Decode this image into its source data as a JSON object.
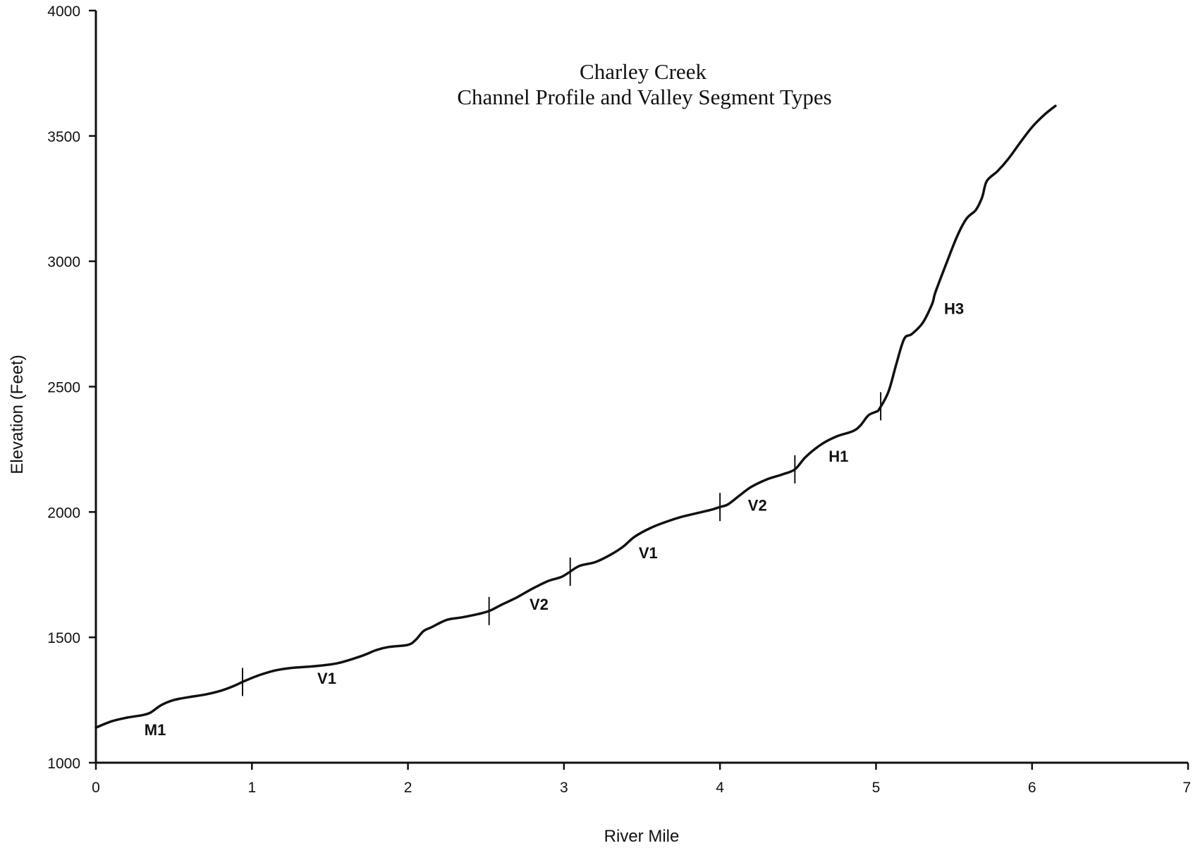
{
  "chart_data": {
    "type": "line",
    "title": "Charley Creek",
    "subtitle": "Channel Profile and Valley Segment Types",
    "xlabel": "River Mile",
    "ylabel": "Elevation (Feet)",
    "xlim": [
      0,
      7
    ],
    "ylim": [
      1000,
      4000
    ],
    "x_ticks": [
      "0",
      "1",
      "2",
      "3",
      "4",
      "5",
      "6",
      "7"
    ],
    "y_ticks": [
      "1000",
      "1500",
      "2000",
      "2500",
      "3000",
      "3500",
      "4000"
    ],
    "grid": false,
    "series": [
      {
        "x": [
          0,
          0.1,
          0.2,
          0.3,
          0.35,
          0.42,
          0.5,
          0.6,
          0.7,
          0.8,
          0.88,
          0.95,
          1.05,
          1.15,
          1.25,
          1.4,
          1.55,
          1.7,
          1.8,
          1.88,
          2.0,
          2.05,
          2.1,
          2.15,
          2.25,
          2.35,
          2.45,
          2.52,
          2.6,
          2.7,
          2.8,
          2.9,
          2.98,
          3.03,
          3.1,
          3.2,
          3.3,
          3.38,
          3.45,
          3.55,
          3.65,
          3.75,
          3.85,
          3.95,
          4.0,
          4.05,
          4.12,
          4.2,
          4.3,
          4.4,
          4.48,
          4.55,
          4.65,
          4.75,
          4.85,
          4.9,
          4.95,
          5.0,
          5.02,
          5.08,
          5.13,
          5.18,
          5.23,
          5.3,
          5.36,
          5.38,
          5.45,
          5.52,
          5.58,
          5.64,
          5.68,
          5.71,
          5.78,
          5.85,
          5.92,
          6.0,
          6.08,
          6.15
        ],
        "y": [
          1140,
          1165,
          1180,
          1190,
          1200,
          1230,
          1250,
          1262,
          1272,
          1287,
          1305,
          1325,
          1350,
          1368,
          1378,
          1385,
          1397,
          1425,
          1450,
          1462,
          1470,
          1490,
          1525,
          1540,
          1570,
          1580,
          1593,
          1605,
          1630,
          1660,
          1695,
          1725,
          1740,
          1758,
          1785,
          1800,
          1830,
          1862,
          1900,
          1935,
          1960,
          1980,
          1995,
          2010,
          2020,
          2030,
          2063,
          2100,
          2130,
          2150,
          2170,
          2220,
          2270,
          2302,
          2322,
          2345,
          2385,
          2400,
          2410,
          2480,
          2590,
          2690,
          2710,
          2755,
          2830,
          2875,
          2990,
          3100,
          3170,
          3205,
          3255,
          3320,
          3360,
          3410,
          3470,
          3535,
          3585,
          3620
        ]
      }
    ],
    "boundaries": [
      0.94,
      2.52,
      3.04,
      4.0,
      4.48,
      5.03
    ],
    "segments": [
      {
        "label": "M1",
        "x": 0.38,
        "y": 1110
      },
      {
        "label": "V1",
        "x": 1.48,
        "y": 1315
      },
      {
        "label": "V2",
        "x": 2.84,
        "y": 1610
      },
      {
        "label": "V1",
        "x": 3.54,
        "y": 1815
      },
      {
        "label": "V2",
        "x": 4.24,
        "y": 2005
      },
      {
        "label": "H1",
        "x": 4.76,
        "y": 2200
      },
      {
        "label": "H3",
        "x": 5.5,
        "y": 2790
      }
    ]
  }
}
